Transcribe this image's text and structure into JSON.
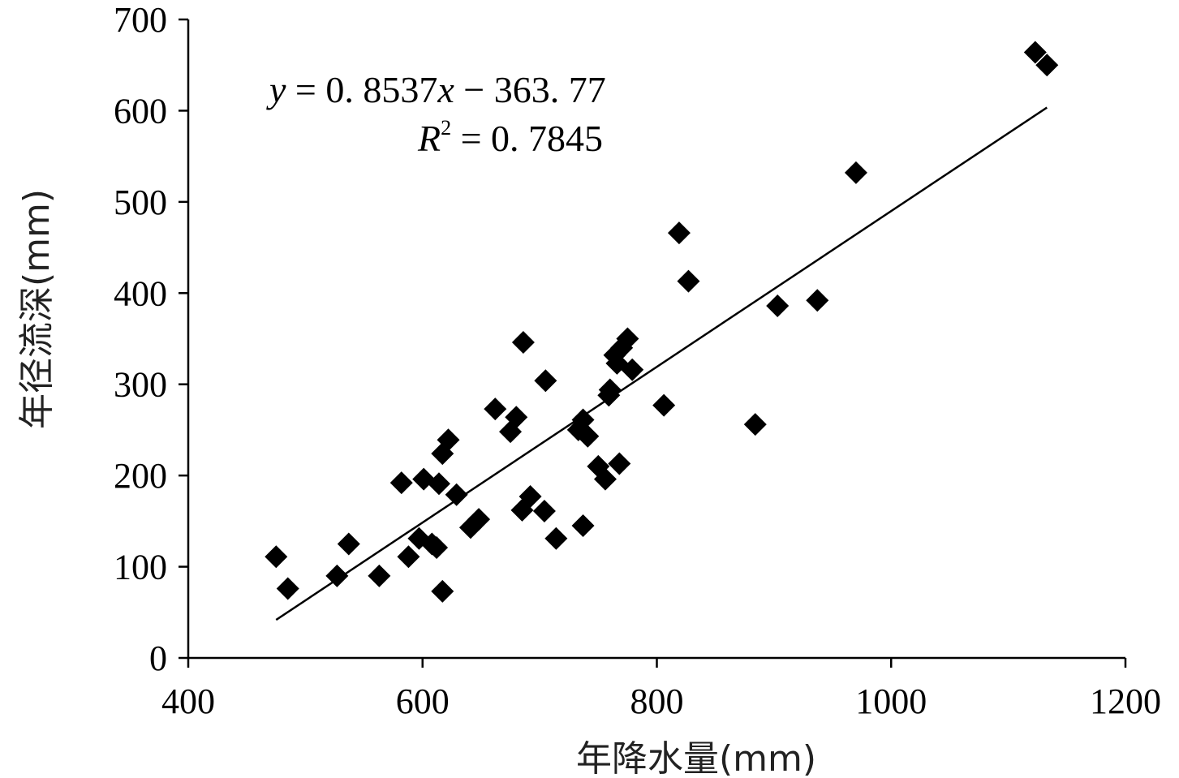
{
  "chart_data": {
    "type": "scatter",
    "xlabel": "年降水量(mm)",
    "ylabel": "年径流深(mm)",
    "xlim": [
      400,
      1200
    ],
    "ylim": [
      0,
      700
    ],
    "x_ticks": [
      "400",
      "600",
      "800",
      "1000",
      "1200"
    ],
    "y_ticks": [
      "0",
      "100",
      "200",
      "300",
      "400",
      "500",
      "600",
      "700"
    ],
    "marker": "diamond",
    "marker_color": "#000000",
    "grid": false,
    "series": [
      {
        "points": [
          [
            475,
            111
          ],
          [
            485,
            76
          ],
          [
            527,
            90
          ],
          [
            537,
            125
          ],
          [
            563,
            90
          ],
          [
            582,
            192
          ],
          [
            588,
            111
          ],
          [
            597,
            131
          ],
          [
            601,
            196
          ],
          [
            608,
            125
          ],
          [
            612,
            121
          ],
          [
            614,
            191
          ],
          [
            617,
            73
          ],
          [
            617,
            224
          ],
          [
            622,
            239
          ],
          [
            629,
            179
          ],
          [
            641,
            143
          ],
          [
            648,
            152
          ],
          [
            662,
            273
          ],
          [
            675,
            248
          ],
          [
            680,
            264
          ],
          [
            685,
            162
          ],
          [
            686,
            346
          ],
          [
            692,
            177
          ],
          [
            704,
            161
          ],
          [
            705,
            304
          ],
          [
            714,
            131
          ],
          [
            733,
            250
          ],
          [
            737,
            145
          ],
          [
            737,
            261
          ],
          [
            741,
            243
          ],
          [
            750,
            210
          ],
          [
            756,
            196
          ],
          [
            759,
            288
          ],
          [
            760,
            294
          ],
          [
            764,
            332
          ],
          [
            766,
            323
          ],
          [
            768,
            213
          ],
          [
            770,
            340
          ],
          [
            775,
            350
          ],
          [
            779,
            316
          ],
          [
            806,
            277
          ],
          [
            819,
            466
          ],
          [
            827,
            413
          ],
          [
            884,
            256
          ],
          [
            903,
            386
          ],
          [
            937,
            392
          ],
          [
            970,
            532
          ],
          [
            1123,
            664
          ],
          [
            1133,
            650
          ]
        ]
      }
    ],
    "trendline": {
      "slope": 0.8537,
      "intercept": -363.77,
      "x_range": [
        475,
        1133
      ],
      "equation_label": {
        "y": "y",
        "rhs": " = 0. 8537",
        "x": "x",
        "tail": " − 363. 77"
      },
      "r2_label": {
        "R": "R",
        "sup": "2",
        "rhs": " = 0. 7845"
      }
    }
  }
}
